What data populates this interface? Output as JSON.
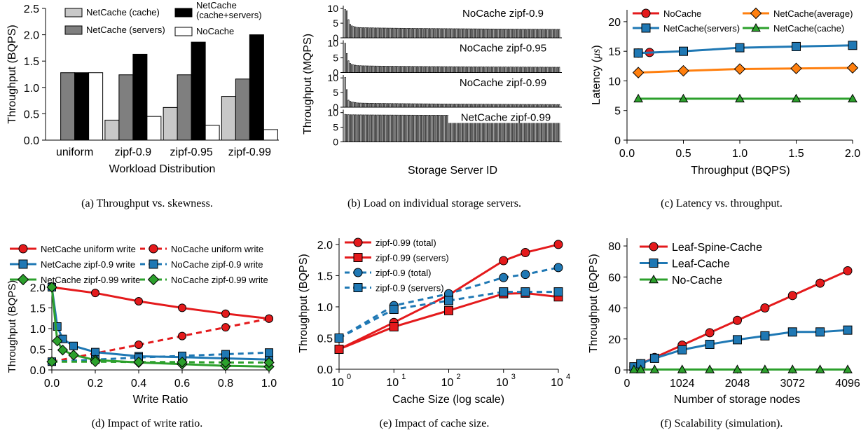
{
  "chart_data": [
    {
      "id": "a",
      "type": "bar",
      "caption": "(a)  Throughput vs. skewness.",
      "xlabel": "Workload Distribution",
      "ylabel": "Throughput (BQPS)",
      "ylim": [
        0,
        2.5
      ],
      "yticks": [
        "0.0",
        "0.5",
        "1.0",
        "1.5",
        "2.0",
        "2.5"
      ],
      "categories": [
        "uniform",
        "zipf-0.9",
        "zipf-0.95",
        "zipf-0.99"
      ],
      "series": [
        {
          "name": "NetCache (cache)",
          "color": "#c8c8c8",
          "values": [
            0,
            0.38,
            0.62,
            0.83
          ]
        },
        {
          "name": "NetCache (servers)",
          "color": "#7f7f7f",
          "values": [
            1.28,
            1.24,
            1.24,
            1.16
          ]
        },
        {
          "name": "NetCache\n(cache+servers)",
          "color": "#000000",
          "values": [
            1.28,
            1.63,
            1.86,
            2.0
          ]
        },
        {
          "name": "NoCache",
          "color": "#ffffff",
          "values": [
            1.28,
            0.45,
            0.28,
            0.2
          ]
        }
      ]
    },
    {
      "id": "b",
      "type": "bar",
      "caption": "(b)  Load on individual storage servers.",
      "xlabel": "Storage Server ID",
      "ylabel": "Throughput (MQPS)",
      "yticks": [
        "0",
        "5",
        "10"
      ],
      "ylim": [
        0,
        11
      ],
      "num_servers": 128,
      "panels": [
        {
          "name": "NoCache zipf-0.9",
          "peaks": [
            9.7,
            9.2,
            6.2,
            4.6,
            4.1,
            3.9,
            3.7
          ],
          "tail_start": 3.6,
          "tail_end": 2.9
        },
        {
          "name": "NoCache zipf-0.95",
          "peaks": [
            10.0,
            6.5,
            4.0,
            3.1,
            2.8,
            2.6,
            2.5
          ],
          "tail_start": 2.4,
          "tail_end": 1.8
        },
        {
          "name": "NoCache zipf-0.99",
          "peaks": [
            10.2,
            6.0,
            2.4,
            2.0,
            1.8,
            1.7,
            1.6
          ],
          "tail_start": 1.5,
          "tail_end": 0.9
        },
        {
          "name": "NetCache zipf-0.99",
          "peaks": [
            9.4
          ],
          "tail_start": 9.3,
          "tail_end": 9.0
        }
      ]
    },
    {
      "id": "c",
      "type": "line",
      "caption": "(c)  Latency vs. throughput.",
      "xlabel": "Throughput (BQPS)",
      "ylabel": "Latency (",
      "ylabel_mu": "μs",
      "ylabel_end": ")",
      "xlim": [
        0,
        2.0
      ],
      "ylim": [
        0,
        22
      ],
      "xticks": [
        "0.0",
        "0.5",
        "1.0",
        "1.5",
        "2.0"
      ],
      "yticks": [
        "0",
        "5",
        "10",
        "15",
        "20"
      ],
      "series": [
        {
          "name": "NoCache",
          "color": "#e41a1c",
          "marker": "circle",
          "x": [
            0.1,
            0.2
          ],
          "y": [
            14.7,
            14.8
          ]
        },
        {
          "name": "NetCache(servers)",
          "color": "#1f78b4",
          "marker": "square",
          "x": [
            0.1,
            0.5,
            1.0,
            1.5,
            2.0
          ],
          "y": [
            14.7,
            15.0,
            15.6,
            15.8,
            16.0
          ]
        },
        {
          "name": "NetCache(average)",
          "color": "#ff7f0e",
          "marker": "diamond",
          "x": [
            0.1,
            0.5,
            1.0,
            1.5,
            2.0
          ],
          "y": [
            11.4,
            11.7,
            12.0,
            12.1,
            12.2
          ]
        },
        {
          "name": "NetCache(cache)",
          "color": "#2ca02c",
          "marker": "triangle",
          "x": [
            0.1,
            0.5,
            1.0,
            1.5,
            2.0
          ],
          "y": [
            7.0,
            7.0,
            7.0,
            7.0,
            7.0
          ]
        }
      ]
    },
    {
      "id": "d",
      "type": "line",
      "caption": "(d)  Impact of write ratio.",
      "xlabel": "Write Ratio",
      "ylabel": "Throughput (BQPS)",
      "xlim": [
        0,
        1.0
      ],
      "ylim": [
        0,
        2.1
      ],
      "xticks": [
        "0.0",
        "0.2",
        "0.4",
        "0.6",
        "0.8",
        "1.0"
      ],
      "yticks": [
        "0.0",
        "0.5",
        "1.0",
        "1.5",
        "2.0"
      ],
      "series": [
        {
          "name": "NetCache uniform write",
          "color": "#e41a1c",
          "marker": "circle",
          "dashed": false,
          "x": [
            0,
            0.2,
            0.4,
            0.6,
            0.8,
            1.0
          ],
          "y": [
            2.0,
            1.86,
            1.66,
            1.5,
            1.36,
            1.24
          ]
        },
        {
          "name": "NoCache uniform write",
          "color": "#e41a1c",
          "marker": "circle",
          "dashed": true,
          "x": [
            0,
            0.2,
            0.4,
            0.6,
            0.8,
            1.0
          ],
          "y": [
            0.2,
            0.4,
            0.61,
            0.82,
            1.03,
            1.24
          ]
        },
        {
          "name": "NetCache zipf-0.9 write",
          "color": "#1f78b4",
          "marker": "square",
          "dashed": false,
          "x": [
            0,
            0.025,
            0.05,
            0.1,
            0.2,
            0.4,
            0.6,
            0.8,
            1.0
          ],
          "y": [
            2.0,
            1.05,
            0.75,
            0.58,
            0.43,
            0.33,
            0.31,
            0.28,
            0.25
          ]
        },
        {
          "name": "NoCache zipf-0.9 write",
          "color": "#1f78b4",
          "marker": "square",
          "dashed": true,
          "x": [
            0,
            0.2,
            0.4,
            0.6,
            0.8,
            1.0
          ],
          "y": [
            0.2,
            0.25,
            0.3,
            0.34,
            0.38,
            0.42
          ]
        },
        {
          "name": "NetCache zipf-0.99 write",
          "color": "#2ca02c",
          "marker": "diamond",
          "dashed": false,
          "x": [
            0,
            0.025,
            0.05,
            0.1,
            0.2,
            0.4,
            0.6,
            0.8,
            1.0
          ],
          "y": [
            2.0,
            0.7,
            0.48,
            0.36,
            0.24,
            0.18,
            0.14,
            0.1,
            0.08
          ]
        },
        {
          "name": "NoCache zipf-0.99 write",
          "color": "#2ca02c",
          "marker": "diamond",
          "dashed": true,
          "x": [
            0,
            0.2,
            0.4,
            0.6,
            0.8,
            1.0
          ],
          "y": [
            0.2,
            0.2,
            0.19,
            0.19,
            0.18,
            0.18
          ]
        }
      ]
    },
    {
      "id": "e",
      "type": "line",
      "caption": "(e)  Impact of cache size.",
      "xlabel": "Cache Size (log scale)",
      "ylabel": "Throughput (BQPS)",
      "xscale": "log",
      "xlim": [
        1,
        10000
      ],
      "ylim": [
        0,
        2.1
      ],
      "xticks": [
        {
          "base": "10",
          "exp": "0"
        },
        {
          "base": "10",
          "exp": "1"
        },
        {
          "base": "10",
          "exp": "2"
        },
        {
          "base": "10",
          "exp": "3"
        },
        {
          "base": "10",
          "exp": "4"
        }
      ],
      "yticks": [
        "0.0",
        "0.5",
        "1.0",
        "1.5",
        "2.0"
      ],
      "series": [
        {
          "name": "zipf-0.99 (total)",
          "color": "#e41a1c",
          "marker": "circle",
          "dashed": false,
          "x": [
            1,
            10,
            100,
            1000,
            2500,
            10000
          ],
          "y": [
            0.32,
            0.75,
            1.19,
            1.74,
            1.87,
            2.0
          ]
        },
        {
          "name": "zipf-0.99 (servers)",
          "color": "#e41a1c",
          "marker": "square",
          "dashed": false,
          "x": [
            1,
            10,
            100,
            1000,
            2500,
            10000
          ],
          "y": [
            0.32,
            0.68,
            0.94,
            1.21,
            1.22,
            1.16
          ]
        },
        {
          "name": "zipf-0.9 (total)",
          "color": "#1f78b4",
          "marker": "circle",
          "dashed": true,
          "x": [
            1,
            10,
            100,
            1000,
            2500,
            10000
          ],
          "y": [
            0.5,
            1.02,
            1.21,
            1.47,
            1.52,
            1.63
          ]
        },
        {
          "name": "zipf-0.9 (servers)",
          "color": "#1f78b4",
          "marker": "square",
          "dashed": true,
          "x": [
            1,
            10,
            100,
            1000,
            2500,
            10000
          ],
          "y": [
            0.5,
            0.96,
            1.1,
            1.24,
            1.24,
            1.24
          ]
        }
      ]
    },
    {
      "id": "f",
      "type": "line",
      "caption": "(f)  Scalability (simulation).",
      "xlabel": "Number of storage nodes",
      "ylabel": "Throughput (BQPS)",
      "xlim": [
        0,
        4096
      ],
      "ylim": [
        0,
        85
      ],
      "xticks": [
        "0",
        "1024",
        "2048",
        "3072",
        "4096"
      ],
      "xtick_values": [
        0,
        1024,
        2048,
        3072,
        4096
      ],
      "yticks": [
        "0",
        "20",
        "40",
        "60",
        "80"
      ],
      "series": [
        {
          "name": "Leaf-Spine-Cache",
          "color": "#e41a1c",
          "marker": "circle",
          "x": [
            128,
            256,
            512,
            1024,
            1536,
            2048,
            2560,
            3072,
            3584,
            4096
          ],
          "y": [
            2,
            4,
            8,
            16,
            24,
            32,
            40,
            48,
            56,
            64
          ]
        },
        {
          "name": "Leaf-Cache",
          "color": "#1f78b4",
          "marker": "square",
          "x": [
            128,
            256,
            512,
            1024,
            1536,
            2048,
            2560,
            3072,
            3584,
            4096
          ],
          "y": [
            2,
            4,
            7.5,
            13,
            16.5,
            19.5,
            22,
            24.5,
            24.5,
            25.7
          ]
        },
        {
          "name": "No-Cache",
          "color": "#2ca02c",
          "marker": "triangle",
          "x": [
            128,
            256,
            512,
            1024,
            1536,
            2048,
            2560,
            3072,
            3584,
            4096
          ],
          "y": [
            0.3,
            0.3,
            0.3,
            0.3,
            0.3,
            0.3,
            0.3,
            0.3,
            0.3,
            0.3
          ]
        }
      ]
    }
  ]
}
